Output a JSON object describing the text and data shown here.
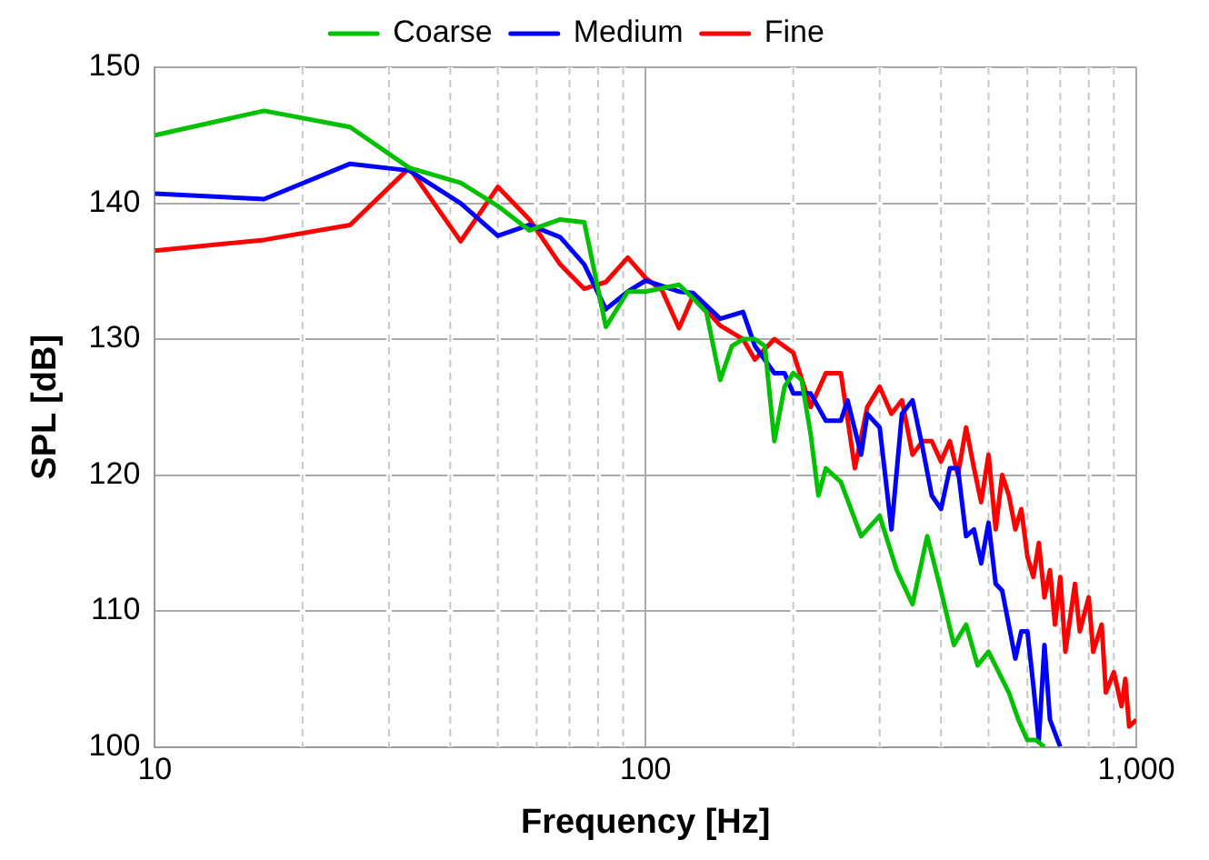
{
  "chart_data": {
    "type": "line",
    "xlabel": "Frequency [Hz]",
    "ylabel": "SPL [dB]",
    "log": "x",
    "grid": true,
    "legend": "top",
    "marker": "none",
    "line_style": "solid",
    "xlim": [
      10,
      1000
    ],
    "ylim": [
      100,
      150
    ],
    "xticks": [
      10,
      {
        "value": 20,
        "label": null
      },
      {
        "value": 30,
        "label": null
      },
      {
        "value": 40,
        "label": null
      },
      {
        "value": 50,
        "label": null
      },
      {
        "value": 60,
        "label": null
      },
      {
        "value": 70,
        "label": null
      },
      {
        "value": 80,
        "label": null
      },
      {
        "value": 90,
        "label": null
      },
      100,
      {
        "value": 200,
        "label": null
      },
      {
        "value": 300,
        "label": null
      },
      {
        "value": 400,
        "label": null
      },
      {
        "value": 500,
        "label": null
      },
      {
        "value": 600,
        "label": null
      },
      {
        "value": 700,
        "label": null
      },
      {
        "value": 800,
        "label": null
      },
      {
        "value": 900,
        "label": null
      },
      {
        "value": 1000,
        "label": "1,000"
      }
    ],
    "yticks": [
      100,
      110,
      120,
      130,
      140,
      150
    ],
    "series": [
      {
        "name": "Coarse",
        "color": "#00c000",
        "x": [
          10,
          16.7,
          25,
          33,
          42,
          50,
          58,
          67,
          75,
          83,
          92,
          100,
          117,
          125,
          133,
          142,
          150,
          158,
          167,
          175,
          183,
          192,
          200,
          208,
          217,
          225,
          233,
          250,
          275,
          300,
          325,
          350,
          375,
          400,
          425,
          450,
          475,
          500,
          550,
          575,
          600,
          625,
          650
        ],
        "values": [
          145,
          146.8,
          145.6,
          142.6,
          141.5,
          139.8,
          138,
          138.8,
          138.6,
          130.9,
          133.5,
          133.5,
          134,
          133,
          132,
          127,
          129.5,
          130,
          130,
          129.5,
          122.5,
          126.5,
          127.5,
          127,
          123,
          118.5,
          120.5,
          119.5,
          115.5,
          117,
          113,
          110.5,
          115.5,
          111.5,
          107.5,
          109,
          106,
          107,
          104,
          102,
          100.5,
          100.5,
          100
        ]
      },
      {
        "name": "Medium",
        "color": "#0000ff",
        "x": [
          10,
          16.7,
          25,
          33,
          42,
          50,
          58,
          67,
          75,
          83,
          92,
          100,
          117,
          125,
          142,
          158,
          167,
          183,
          192,
          200,
          217,
          233,
          250,
          258,
          275,
          283,
          300,
          317,
          333,
          350,
          367,
          383,
          400,
          417,
          433,
          450,
          467,
          483,
          500,
          517,
          533,
          567,
          583,
          600,
          617,
          633,
          650,
          667,
          700
        ],
        "values": [
          140.7,
          140.3,
          142.9,
          142.4,
          140,
          137.6,
          138.4,
          137.5,
          135.5,
          132.2,
          133.5,
          134.3,
          133.5,
          133.4,
          131.5,
          132,
          129.5,
          127.5,
          127.5,
          126,
          126,
          124,
          124,
          125.5,
          121.5,
          124.5,
          123.5,
          116,
          124.5,
          125.5,
          122,
          118.5,
          117.5,
          120.5,
          120.5,
          115.5,
          116,
          113.5,
          116.5,
          112,
          111.5,
          106.5,
          108.5,
          108.5,
          104.5,
          100.5,
          107.5,
          102,
          100
        ]
      },
      {
        "name": "Fine",
        "color": "#ff0000",
        "x": [
          10,
          16.7,
          25,
          33,
          42,
          50,
          58,
          67,
          75,
          83,
          92,
          100,
          108,
          117,
          125,
          142,
          158,
          167,
          183,
          200,
          217,
          233,
          250,
          267,
          283,
          300,
          317,
          333,
          350,
          367,
          383,
          400,
          417,
          433,
          450,
          467,
          483,
          500,
          517,
          533,
          550,
          567,
          583,
          600,
          617,
          633,
          650,
          667,
          683,
          700,
          717,
          750,
          767,
          800,
          817,
          850,
          867,
          900,
          933,
          950,
          967,
          1000
        ],
        "values": [
          136.5,
          137.3,
          138.4,
          142.6,
          137.2,
          141.2,
          138.8,
          135.5,
          133.7,
          134.2,
          136,
          134.5,
          133.6,
          130.8,
          133.2,
          131,
          130,
          128.5,
          130,
          129,
          125,
          127.5,
          127.5,
          120.5,
          125,
          126.5,
          124.5,
          125.5,
          121.5,
          122.5,
          122.5,
          121,
          122.5,
          120,
          123.5,
          120.5,
          118,
          121.5,
          116,
          120,
          118.5,
          116,
          117.5,
          114,
          112.5,
          115,
          111,
          113,
          109,
          112.5,
          107,
          112,
          108.5,
          111,
          107,
          109,
          104,
          105.5,
          103,
          105,
          101.5,
          102
        ]
      }
    ]
  }
}
